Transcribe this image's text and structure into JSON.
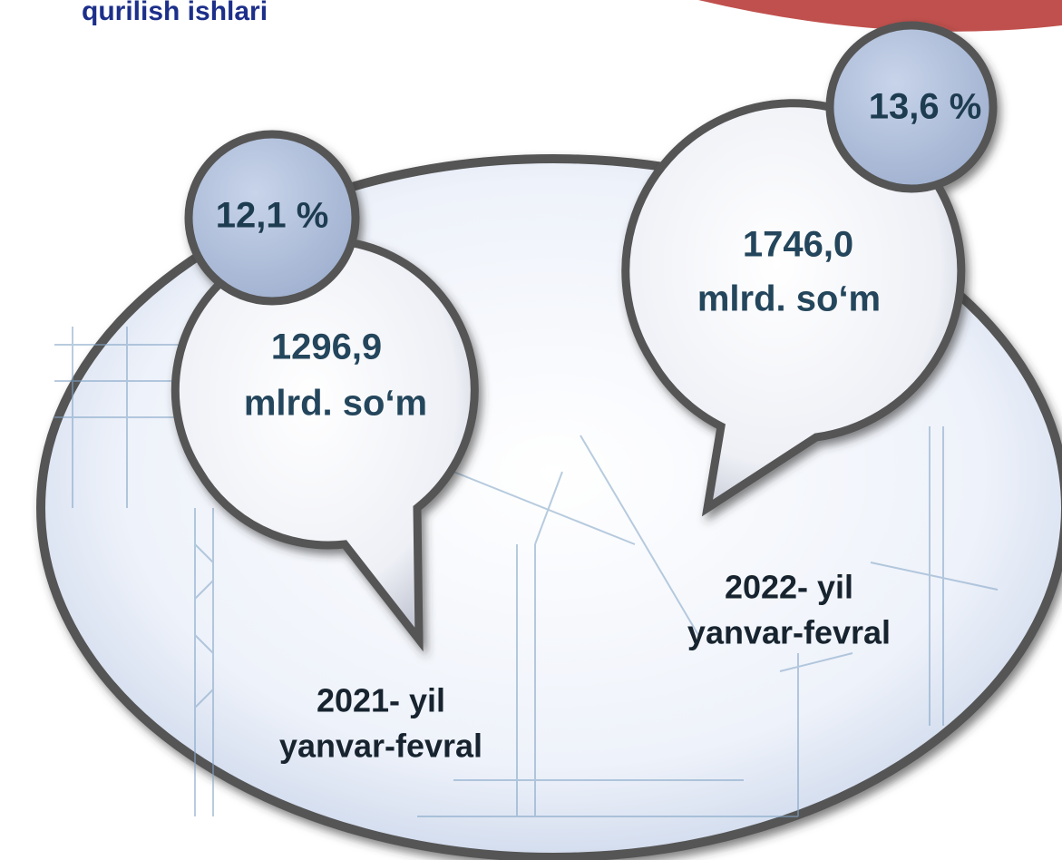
{
  "header": {
    "title": "qurilish ishlari"
  },
  "items": [
    {
      "percent": "12,1 %",
      "value": "1296,9",
      "unit": "mlrd. so‘m",
      "year": "2021- yil",
      "period": "yanvar-fevral"
    },
    {
      "percent": "13,6 %",
      "value": "1746,0",
      "unit": "mlrd. so‘m",
      "year": "2022- yil",
      "period": "yanvar-fevral"
    }
  ]
}
